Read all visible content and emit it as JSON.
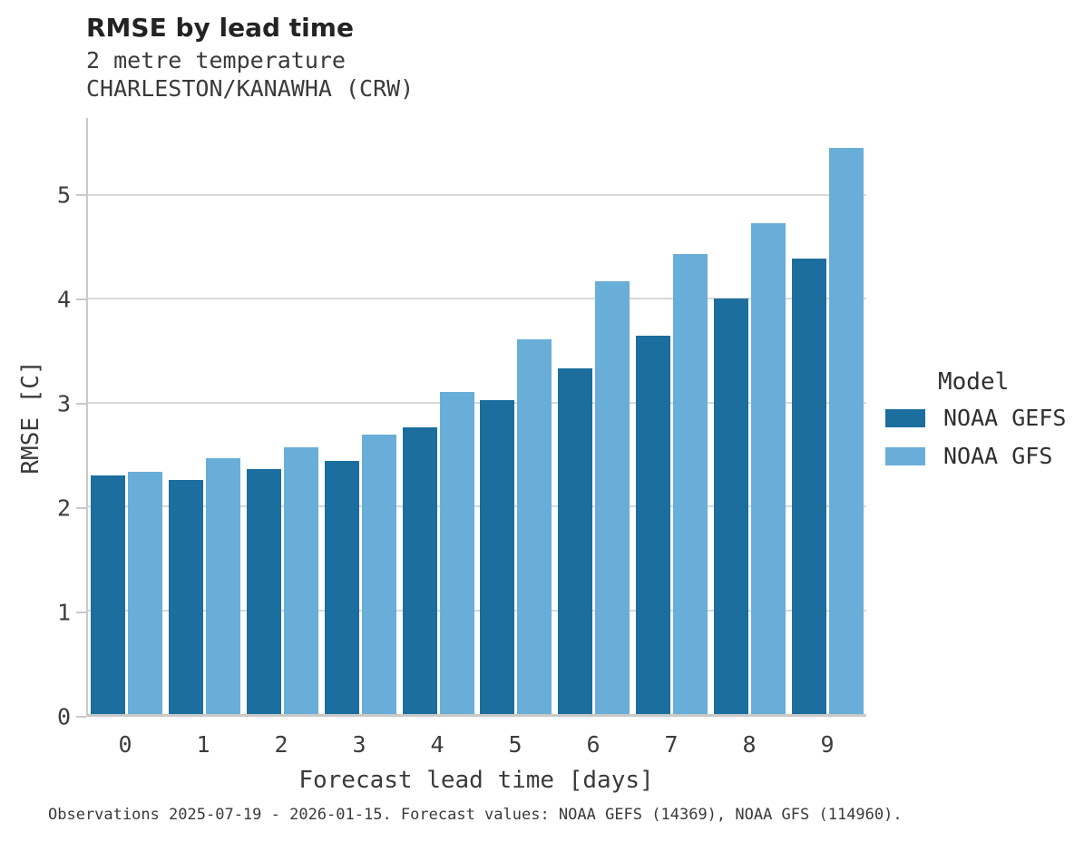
{
  "header": {
    "title": "RMSE by lead time",
    "subtitle_line1": "2 metre temperature",
    "subtitle_line2": "CHARLESTON/KANAWHA (CRW)"
  },
  "chart_data": {
    "type": "bar",
    "title": "RMSE by lead time",
    "subtitle": "2 metre temperature — CHARLESTON/KANAWHA (CRW)",
    "categories": [
      "0",
      "1",
      "2",
      "3",
      "4",
      "5",
      "6",
      "7",
      "8",
      "9"
    ],
    "series": [
      {
        "name": "NOAA GEFS",
        "color": "#1b6e9e",
        "values": [
          2.3,
          2.25,
          2.36,
          2.44,
          2.76,
          3.02,
          3.33,
          3.64,
          4.0,
          4.39
        ]
      },
      {
        "name": "NOAA GFS",
        "color": "#69aed8",
        "values": [
          2.33,
          2.46,
          2.57,
          2.69,
          3.1,
          3.61,
          4.17,
          4.43,
          4.73,
          5.45
        ]
      }
    ],
    "xlabel": "Forecast lead time [days]",
    "ylabel": "RMSE [C]",
    "ylim": [
      0,
      5.74
    ],
    "yticks": [
      0,
      1,
      2,
      3,
      4,
      5
    ],
    "grid": "horizontal-only",
    "legend_title": "Model",
    "legend_position": "right-center"
  },
  "footer": {
    "caption": "Observations 2025-07-19 - 2026-01-15. Forecast values: NOAA GEFS (14369), NOAA GFS (114960)."
  },
  "style_colors": {
    "series_dark": "#1b6e9e",
    "series_light": "#69aed8",
    "gridline": "#d9d9d9",
    "axis_spine": "#c9c9c9",
    "text": "#3a3a3a"
  }
}
